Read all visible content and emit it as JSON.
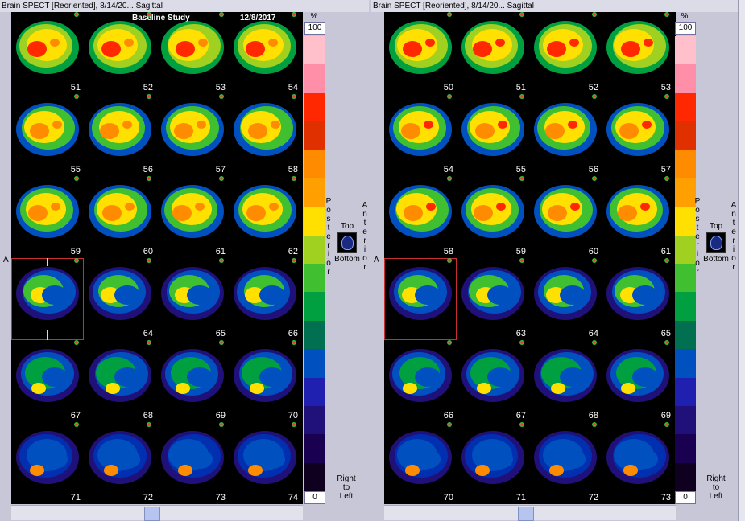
{
  "colors": {
    "bg": "#c7c7d8",
    "viewer_bg": "#000000",
    "accent_selection": "#c83030"
  },
  "left": {
    "title": "Brain SPECT [Reoriented], 8/14/20... Sagittal",
    "header_study": "Baseline Study",
    "header_date": "12/8/2017",
    "slices": [
      "51",
      "52",
      "53",
      "54",
      "55",
      "56",
      "57",
      "58",
      "59",
      "60",
      "61",
      "62",
      "",
      "64",
      "65",
      "66",
      "67",
      "68",
      "69",
      "70",
      "71",
      "72",
      "73",
      "74"
    ],
    "a_label": "A",
    "scale": {
      "unit": "%",
      "max": "100",
      "min": "0"
    },
    "posterior": [
      "P",
      "o",
      "s",
      "t",
      "e",
      "r",
      "i",
      "o",
      "r"
    ],
    "anterior": [
      "A",
      "n",
      "t",
      "e",
      "r",
      "i",
      "o",
      "r"
    ],
    "orient_top": "Top",
    "orient_bottom": "Bottom",
    "rtl": [
      "Right",
      "to",
      "Left"
    ]
  },
  "right": {
    "title": "Brain SPECT [Reoriented], 8/14/20... Sagittal",
    "slices": [
      "50",
      "51",
      "52",
      "53",
      "54",
      "55",
      "56",
      "57",
      "58",
      "59",
      "60",
      "61",
      "",
      "63",
      "64",
      "65",
      "66",
      "67",
      "68",
      "69",
      "70",
      "71",
      "72",
      "73"
    ],
    "a_label": "A",
    "scale": {
      "unit": "%",
      "max": "100",
      "min": "0"
    },
    "posterior": [
      "P",
      "o",
      "s",
      "t",
      "e",
      "r",
      "i",
      "o",
      "r"
    ],
    "anterior": [
      "A",
      "n",
      "t",
      "e",
      "r",
      "i",
      "o",
      "r"
    ],
    "orient_top": "Top",
    "orient_bottom": "Bottom",
    "rtl": [
      "Right",
      "to",
      "Left"
    ]
  },
  "colorbar": [
    "#ffc0cb",
    "#ff8fa8",
    "#ff2800",
    "#e03000",
    "#ff8c00",
    "#ffa000",
    "#ffe000",
    "#a0d020",
    "#40c030",
    "#00a040",
    "#007050",
    "#0050c0",
    "#2020b0",
    "#20107a",
    "#1a0050",
    "#100020"
  ]
}
